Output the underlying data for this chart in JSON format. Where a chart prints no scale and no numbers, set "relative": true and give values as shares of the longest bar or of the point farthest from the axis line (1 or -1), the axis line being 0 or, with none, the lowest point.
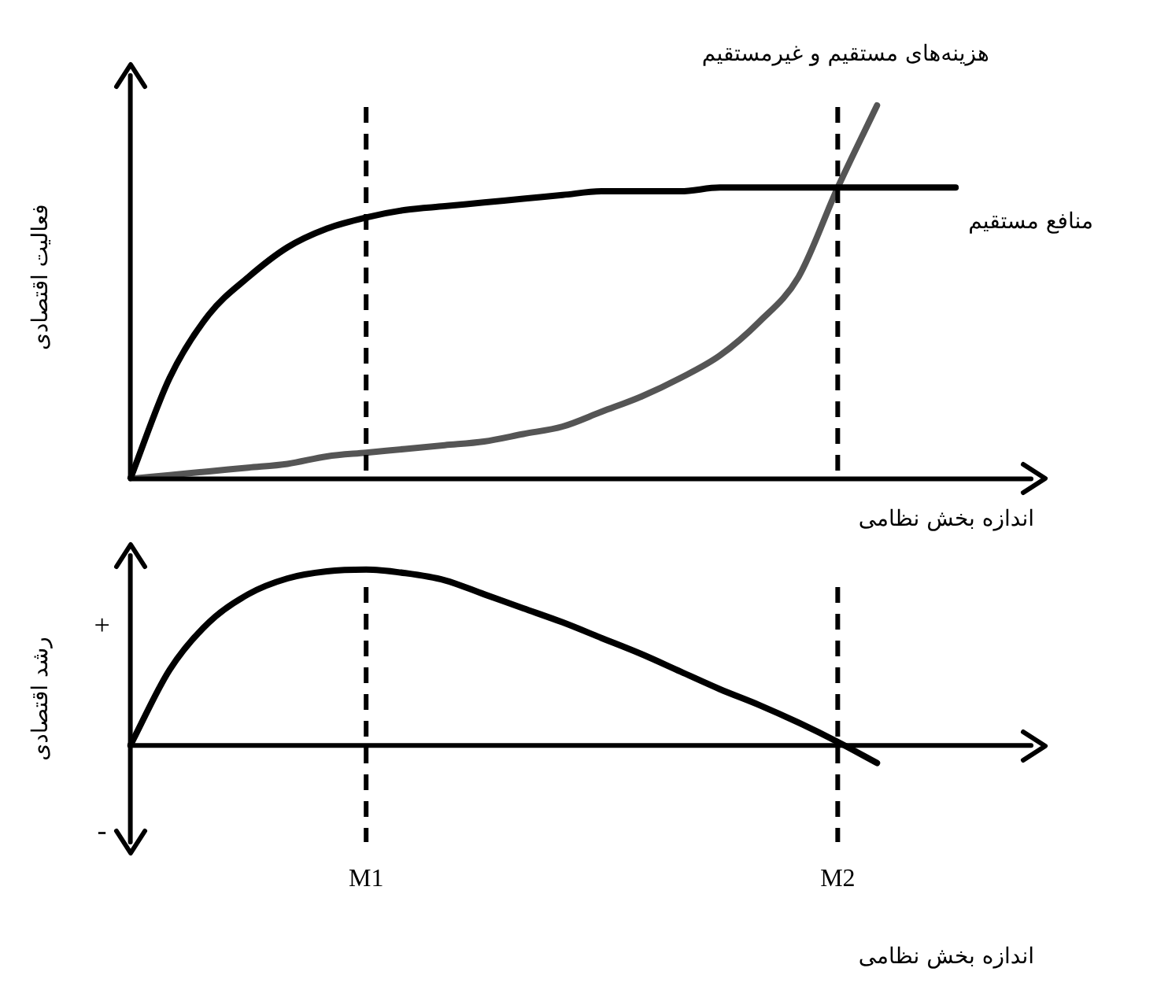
{
  "chart_data": [
    {
      "type": "line",
      "relative": true,
      "tick_labels": false,
      "ylabel": "فعالیت اقتصادی",
      "xlabel": "اندازه بخش نظامی",
      "categories": [
        null,
        null,
        null,
        null,
        null,
        null,
        "M1",
        null,
        null,
        null,
        null,
        null,
        null,
        null,
        null,
        null,
        null,
        null,
        "M2",
        null,
        null,
        null,
        null,
        null
      ],
      "series": [
        {
          "name": "منافع مستقیم",
          "color": "#000000",
          "values": [
            0,
            0.27,
            0.44,
            0.54,
            0.62,
            0.67,
            0.7,
            0.72,
            0.73,
            0.74,
            0.75,
            0.76,
            0.77,
            0.77,
            0.77,
            0.78,
            0.78,
            0.78,
            0.78,
            0.78,
            0.78,
            0.78,
            null,
            null
          ]
        },
        {
          "name": "هزینه‌های مستقیم و غیرمستقیم",
          "color": "#555555",
          "values": [
            0,
            0.01,
            0.02,
            0.03,
            0.04,
            0.06,
            0.07,
            0.08,
            0.09,
            0.1,
            0.12,
            0.14,
            0.18,
            0.22,
            0.27,
            0.33,
            0.42,
            0.54,
            0.78,
            1,
            null,
            null,
            null,
            null
          ]
        }
      ],
      "ref_lines": [
        {
          "axis": "x",
          "value": "M1",
          "line_style": "dashed"
        },
        {
          "axis": "x",
          "value": "M2",
          "line_style": "dashed"
        }
      ]
    },
    {
      "type": "line",
      "relative": true,
      "tick_labels": "x",
      "ylabel": "رشد اقتصادی",
      "xlabel": "اندازه بخش نظامی",
      "categories": [
        null,
        null,
        null,
        null,
        null,
        null,
        "M1",
        null,
        null,
        null,
        null,
        null,
        null,
        null,
        null,
        null,
        null,
        null,
        "M2",
        null,
        null,
        null,
        null,
        null
      ],
      "series": [
        {
          "color": "#000000",
          "values": [
            0,
            0.43,
            0.7,
            0.86,
            0.95,
            0.99,
            1,
            0.98,
            0.94,
            0.86,
            0.78,
            0.7,
            0.61,
            0.52,
            0.42,
            0.32,
            0.23,
            0.13,
            0.02,
            -0.1,
            null,
            null,
            null,
            null
          ]
        }
      ],
      "ref_lines": [
        {
          "axis": "x",
          "value": "M1",
          "line_style": "dashed"
        },
        {
          "axis": "x",
          "value": "M2",
          "line_style": "dashed"
        }
      ],
      "annotations": [
        "+",
        "-"
      ]
    }
  ]
}
